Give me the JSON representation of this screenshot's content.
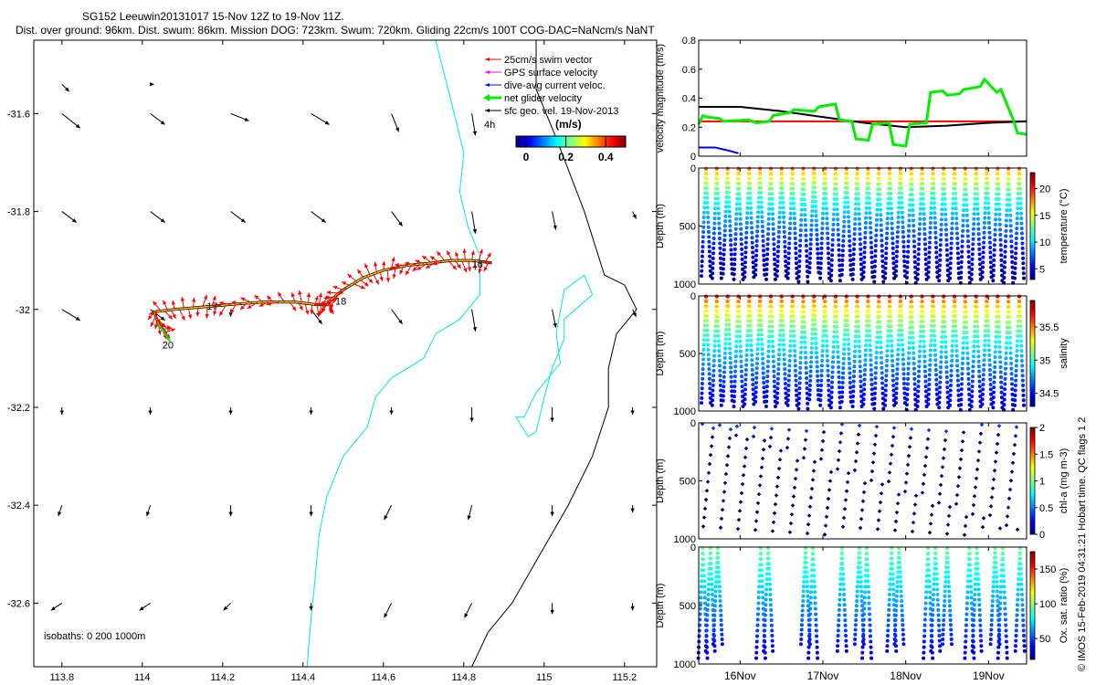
{
  "header": {
    "title_line1": "SG152 Leeuwin20131017 15-Nov 12Z to 19-Nov 11Z.",
    "title_line2": "Dist. over ground: 96km. Dist. swum: 86km. Mission DOG: 723km. Swum: 720km. Gliding 22cm/s 100T COG-DAC=NaNcm/s NaNT"
  },
  "credit": "© IMOS 15-Feb-2019 04:31:21 Hobart time. QC flags 1  2",
  "colors": {
    "swim": "#ff0000",
    "gps": "#ff00ff",
    "dac": "#0000ff",
    "net": "#00ee00",
    "geo": "#000000",
    "isobath_200": "#00e5ee",
    "isobath_1000": "#000000"
  },
  "chart_data": [
    {
      "id": "map",
      "type": "scatter",
      "xlabel": "",
      "ylabel": "",
      "xlim": [
        113.73,
        115.28
      ],
      "ylim": [
        -32.73,
        -31.45
      ],
      "xticks": [
        113.8,
        114,
        114.2,
        114.4,
        114.6,
        114.8,
        115,
        115.2
      ],
      "xtick_labels": [
        "113.8",
        "114",
        "114.2",
        "114.4",
        "114.6",
        "114.8",
        "115",
        "115.2"
      ],
      "yticks": [
        -31.6,
        -31.8,
        -32,
        -32.2,
        -32.4,
        -32.6
      ],
      "ytick_labels": [
        "-31.6",
        "-31.8",
        "-32",
        "-32.2",
        "-32.4",
        "-32.6"
      ],
      "legend": {
        "placement": "top-right",
        "entries": [
          "25cm/s swim vector",
          "GPS surface velocity",
          "dive-avg current veloc.",
          "net glider velocity",
          "sfc geo. vel. 19-Nov-2013"
        ],
        "colorbar_tag": "4h",
        "colorbar_unit": "(m/s)",
        "colorbar_ticks": [
          "0",
          "0.2",
          "0.4"
        ],
        "colorbar_range": [
          -0.05,
          0.5
        ]
      },
      "isobaths_label": "isobaths: 0   200  1000m",
      "track_labels": [
        {
          "text": "16",
          "lon": 114.82,
          "lat": -31.915
        },
        {
          "text": "17",
          "lon": 114.16,
          "lat": -32.0
        },
        {
          "text": "18",
          "lon": 114.48,
          "lat": -31.99
        },
        {
          "text": "20",
          "lon": 114.05,
          "lat": -32.08
        }
      ],
      "track": [
        [
          114.87,
          -31.905
        ],
        [
          114.82,
          -31.9
        ],
        [
          114.77,
          -31.9
        ],
        [
          114.72,
          -31.905
        ],
        [
          114.66,
          -31.91
        ],
        [
          114.6,
          -31.92
        ],
        [
          114.55,
          -31.935
        ],
        [
          114.5,
          -31.96
        ],
        [
          114.47,
          -31.98
        ],
        [
          114.46,
          -31.99
        ],
        [
          114.43,
          -31.99
        ],
        [
          114.38,
          -31.985
        ],
        [
          114.3,
          -31.985
        ],
        [
          114.22,
          -31.99
        ],
        [
          114.15,
          -31.995
        ],
        [
          114.08,
          -32.0
        ],
        [
          114.03,
          -32.005
        ],
        [
          114.04,
          -32.03
        ],
        [
          114.06,
          -32.05
        ]
      ],
      "geo_vectors": [
        {
          "lon": 113.8,
          "lat": -31.54,
          "u": 0.02,
          "v": -0.02
        },
        {
          "lon": 114.02,
          "lat": -31.54,
          "u": 0.01,
          "v": 0
        },
        {
          "lon": 113.8,
          "lat": -31.6,
          "u": 0.05,
          "v": -0.04
        },
        {
          "lon": 114.02,
          "lat": -31.6,
          "u": 0.04,
          "v": -0.03
        },
        {
          "lon": 114.22,
          "lat": -31.6,
          "u": 0.05,
          "v": -0.02
        },
        {
          "lon": 114.42,
          "lat": -31.6,
          "u": 0.05,
          "v": -0.03
        },
        {
          "lon": 114.62,
          "lat": -31.6,
          "u": 0.02,
          "v": -0.05
        },
        {
          "lon": 114.82,
          "lat": -31.6,
          "u": 0.01,
          "v": -0.06
        },
        {
          "lon": 113.8,
          "lat": -31.8,
          "u": 0.04,
          "v": -0.03
        },
        {
          "lon": 114.02,
          "lat": -31.8,
          "u": 0.04,
          "v": -0.03
        },
        {
          "lon": 114.22,
          "lat": -31.8,
          "u": 0.04,
          "v": -0.03
        },
        {
          "lon": 114.42,
          "lat": -31.8,
          "u": 0.04,
          "v": -0.03
        },
        {
          "lon": 114.62,
          "lat": -31.8,
          "u": 0.03,
          "v": -0.04
        },
        {
          "lon": 114.82,
          "lat": -31.8,
          "u": 0.01,
          "v": -0.06
        },
        {
          "lon": 115.02,
          "lat": -31.8,
          "u": 0.01,
          "v": -0.05
        },
        {
          "lon": 115.22,
          "lat": -31.8,
          "u": 0.01,
          "v": -0.02
        },
        {
          "lon": 113.8,
          "lat": -32.0,
          "u": 0.05,
          "v": -0.03
        },
        {
          "lon": 114.02,
          "lat": -32.0,
          "u": 0.04,
          "v": -0.03
        },
        {
          "lon": 114.22,
          "lat": -32.0,
          "u": 0.0,
          "v": -0.02
        },
        {
          "lon": 114.42,
          "lat": -32.0,
          "u": 0.03,
          "v": -0.04
        },
        {
          "lon": 114.62,
          "lat": -32.0,
          "u": 0.03,
          "v": -0.04
        },
        {
          "lon": 114.82,
          "lat": -32.0,
          "u": 0.01,
          "v": -0.06
        },
        {
          "lon": 115.02,
          "lat": -32.0,
          "u": 0.01,
          "v": -0.05
        },
        {
          "lon": 115.22,
          "lat": -32.0,
          "u": 0.01,
          "v": -0.02
        },
        {
          "lon": 113.8,
          "lat": -32.2,
          "u": 0.0,
          "v": -0.02
        },
        {
          "lon": 114.02,
          "lat": -32.2,
          "u": 0.0,
          "v": -0.02
        },
        {
          "lon": 114.22,
          "lat": -32.2,
          "u": 0.0,
          "v": -0.02
        },
        {
          "lon": 114.42,
          "lat": -32.2,
          "u": 0.0,
          "v": -0.02
        },
        {
          "lon": 114.62,
          "lat": -32.2,
          "u": 0.0,
          "v": -0.02
        },
        {
          "lon": 114.82,
          "lat": -32.2,
          "u": 0.0,
          "v": -0.04
        },
        {
          "lon": 115.02,
          "lat": -32.2,
          "u": 0.0,
          "v": -0.04
        },
        {
          "lon": 115.22,
          "lat": -32.2,
          "u": 0.0,
          "v": -0.02
        },
        {
          "lon": 113.8,
          "lat": -32.4,
          "u": -0.01,
          "v": -0.03
        },
        {
          "lon": 114.02,
          "lat": -32.4,
          "u": -0.01,
          "v": -0.03
        },
        {
          "lon": 114.22,
          "lat": -32.4,
          "u": 0.0,
          "v": -0.03
        },
        {
          "lon": 114.42,
          "lat": -32.4,
          "u": 0.0,
          "v": -0.03
        },
        {
          "lon": 114.62,
          "lat": -32.4,
          "u": -0.02,
          "v": -0.04
        },
        {
          "lon": 114.82,
          "lat": -32.4,
          "u": -0.01,
          "v": -0.04
        },
        {
          "lon": 115.02,
          "lat": -32.4,
          "u": 0.0,
          "v": -0.03
        },
        {
          "lon": 115.22,
          "lat": -32.4,
          "u": 0.0,
          "v": -0.02
        },
        {
          "lon": 113.8,
          "lat": -32.6,
          "u": -0.03,
          "v": -0.02
        },
        {
          "lon": 114.02,
          "lat": -32.6,
          "u": -0.03,
          "v": -0.02
        },
        {
          "lon": 114.22,
          "lat": -32.6,
          "u": -0.02,
          "v": -0.02
        },
        {
          "lon": 114.42,
          "lat": -32.6,
          "u": 0.0,
          "v": -0.02
        },
        {
          "lon": 114.62,
          "lat": -32.6,
          "u": -0.02,
          "v": -0.04
        },
        {
          "lon": 114.82,
          "lat": -32.6,
          "u": -0.02,
          "v": -0.04
        },
        {
          "lon": 115.02,
          "lat": -32.6,
          "u": 0.0,
          "v": -0.03
        },
        {
          "lon": 115.22,
          "lat": -32.6,
          "u": 0.0,
          "v": -0.02
        }
      ],
      "isobath_200m": [
        [
          114.73,
          -31.45
        ],
        [
          114.77,
          -31.58
        ],
        [
          114.8,
          -31.68
        ],
        [
          114.79,
          -31.76
        ],
        [
          114.81,
          -31.83
        ],
        [
          114.84,
          -31.89
        ],
        [
          114.84,
          -31.97
        ],
        [
          114.79,
          -32.02
        ],
        [
          114.73,
          -32.05
        ],
        [
          114.7,
          -32.1
        ],
        [
          114.62,
          -32.14
        ],
        [
          114.58,
          -32.18
        ],
        [
          114.56,
          -32.24
        ],
        [
          114.5,
          -32.3
        ],
        [
          114.46,
          -32.38
        ],
        [
          114.44,
          -32.46
        ],
        [
          114.43,
          -32.55
        ],
        [
          114.42,
          -32.63
        ],
        [
          114.41,
          -32.73
        ]
      ],
      "isobath_200m_b": [
        [
          114.95,
          -32.22
        ],
        [
          114.98,
          -32.17
        ],
        [
          115.04,
          -32.11
        ],
        [
          115.03,
          -32.05
        ],
        [
          115.05,
          -31.96
        ],
        [
          115.1,
          -31.93
        ],
        [
          115.12,
          -31.97
        ],
        [
          115.05,
          -32.02
        ],
        [
          115.05,
          -32.06
        ],
        [
          115.02,
          -32.12
        ],
        [
          115.0,
          -32.18
        ],
        [
          114.98,
          -32.25
        ],
        [
          114.96,
          -32.26
        ],
        [
          114.93,
          -32.22
        ],
        [
          114.95,
          -32.22
        ]
      ],
      "isobath_1000m": [
        [
          114.98,
          -31.45
        ],
        [
          114.98,
          -31.55
        ],
        [
          115.03,
          -31.65
        ],
        [
          115.1,
          -31.8
        ],
        [
          115.15,
          -31.93
        ],
        [
          115.2,
          -31.95
        ],
        [
          115.23,
          -32.0
        ],
        [
          115.18,
          -32.05
        ],
        [
          115.16,
          -32.12
        ],
        [
          115.16,
          -32.2
        ],
        [
          115.12,
          -32.3
        ],
        [
          115.06,
          -32.4
        ],
        [
          114.99,
          -32.5
        ],
        [
          114.92,
          -32.6
        ],
        [
          114.86,
          -32.66
        ],
        [
          114.82,
          -32.73
        ]
      ]
    },
    {
      "id": "velocity",
      "type": "line",
      "ylabel": "velocity magnitude (m/s)",
      "ylim": [
        0,
        0.8
      ],
      "yticks": [
        0,
        0.2,
        0.4,
        0.6,
        0.8
      ],
      "ytick_labels": [
        "0",
        "0.2",
        "0.4",
        "0.6",
        "0.8"
      ],
      "xlim_days": [
        15.5,
        19.46
      ],
      "series": [
        {
          "color": "#ff0000",
          "x": [
            15.5,
            19.46
          ],
          "y": [
            0.24,
            0.24
          ]
        },
        {
          "color": "#000000",
          "x": [
            15.5,
            16.0,
            16.5,
            17.0,
            17.5,
            18.0,
            18.5,
            19.0,
            19.46
          ],
          "y": [
            0.34,
            0.34,
            0.31,
            0.27,
            0.23,
            0.2,
            0.21,
            0.23,
            0.24
          ]
        },
        {
          "color": "#0000ff",
          "x": [
            15.5,
            15.7,
            15.85,
            15.98
          ],
          "y": [
            0.06,
            0.06,
            0.04,
            0.02
          ]
        },
        {
          "color": "#00ee00",
          "x": [
            15.5,
            15.55,
            15.6,
            15.75,
            15.8,
            16.1,
            16.2,
            16.35,
            16.4,
            16.6,
            16.65,
            16.9,
            16.95,
            17.15,
            17.2,
            17.35,
            17.4,
            17.55,
            17.6,
            17.8,
            17.85,
            18.0,
            18.05,
            18.25,
            18.3,
            18.45,
            18.5,
            18.65,
            18.7,
            18.9,
            18.95,
            19.1,
            19.15,
            19.3,
            19.35,
            19.46
          ],
          "y": [
            0.22,
            0.28,
            0.27,
            0.26,
            0.24,
            0.25,
            0.23,
            0.24,
            0.28,
            0.3,
            0.32,
            0.31,
            0.34,
            0.36,
            0.25,
            0.24,
            0.12,
            0.11,
            0.22,
            0.23,
            0.08,
            0.07,
            0.22,
            0.23,
            0.44,
            0.45,
            0.42,
            0.43,
            0.46,
            0.48,
            0.53,
            0.44,
            0.46,
            0.25,
            0.16,
            0.15
          ]
        }
      ]
    },
    {
      "id": "temperature",
      "type": "scatter",
      "ylabel": "Depth (m)",
      "ylim": [
        1000,
        0
      ],
      "yticks": [
        0,
        500,
        1000
      ],
      "ytick_labels": [
        "0",
        "500",
        "1000"
      ],
      "colorbar_label": "temperature (°C)",
      "colorbar_range": [
        3,
        23
      ],
      "colorbar_ticks": [
        5,
        10,
        15,
        20
      ],
      "colorbar_tick_labels": [
        "5",
        "10",
        "15",
        "20"
      ],
      "profile_top": [
        4,
        20
      ],
      "profile_bottom": [
        1000,
        3
      ],
      "dive_depths_m": [
        930,
        950,
        910,
        960,
        940,
        920,
        960,
        930,
        950,
        980,
        900,
        950,
        970,
        920,
        960,
        940,
        980,
        950,
        930,
        990,
        960,
        940,
        970,
        950,
        990,
        960,
        940,
        970,
        990,
        950
      ]
    },
    {
      "id": "salinity",
      "type": "scatter",
      "ylabel": "Depth (m)",
      "ylim": [
        1000,
        0
      ],
      "yticks": [
        0,
        500,
        1000
      ],
      "ytick_labels": [
        "0",
        "500",
        "1000"
      ],
      "colorbar_label": "salinity",
      "colorbar_range": [
        34.3,
        35.9
      ],
      "colorbar_ticks": [
        34.5,
        35,
        35.5
      ],
      "colorbar_tick_labels": [
        "34.5",
        "35",
        "35.5"
      ],
      "profile_top": [
        4,
        35.8
      ],
      "profile_bottom": [
        1000,
        34.4
      ],
      "dive_depths_m": [
        930,
        950,
        910,
        960,
        940,
        920,
        960,
        930,
        950,
        980,
        900,
        950,
        970,
        920,
        960,
        940,
        980,
        950,
        930,
        990,
        960,
        940,
        970,
        950,
        990,
        960,
        940,
        970,
        990,
        950
      ]
    },
    {
      "id": "chla",
      "type": "scatter",
      "ylabel": "Depth (m)",
      "ylim": [
        1000,
        0
      ],
      "yticks": [
        0,
        500,
        1000
      ],
      "ytick_labels": [
        "0",
        "500",
        "1000"
      ],
      "colorbar_label": "chl-a (mg m-3)",
      "colorbar_range": [
        0,
        2
      ],
      "colorbar_ticks": [
        0,
        0.5,
        1,
        1.5,
        2
      ],
      "colorbar_tick_labels": [
        "0",
        "0.5",
        "1",
        "1.5",
        "2"
      ],
      "surface_value": 0.35,
      "deep_value": 0.0
    },
    {
      "id": "oxygen",
      "type": "scatter",
      "ylabel": "Depth (m)",
      "ylim": [
        1000,
        0
      ],
      "yticks": [
        0,
        500,
        1000
      ],
      "ytick_labels": [
        "0",
        "500",
        "1000"
      ],
      "xticks_days": [
        16,
        17,
        18,
        19
      ],
      "xtick_labels": [
        "16Nov",
        "17Nov",
        "18Nov",
        "19Nov"
      ],
      "colorbar_label": "Ox. sat. ratio (%)",
      "colorbar_range": [
        20,
        175
      ],
      "colorbar_ticks": [
        50,
        100,
        150
      ],
      "colorbar_tick_labels": [
        "50",
        "100",
        "150"
      ],
      "profile_top": [
        10,
        95
      ],
      "profile_bottom": [
        1000,
        30
      ],
      "dive_days": [
        15.55,
        15.64,
        15.73,
        16.25,
        16.34,
        16.79,
        16.88,
        17.23,
        17.44,
        17.53,
        17.83,
        17.92,
        18.27,
        18.36,
        18.5,
        18.77,
        18.86,
        19.08,
        19.17,
        19.38
      ]
    }
  ]
}
